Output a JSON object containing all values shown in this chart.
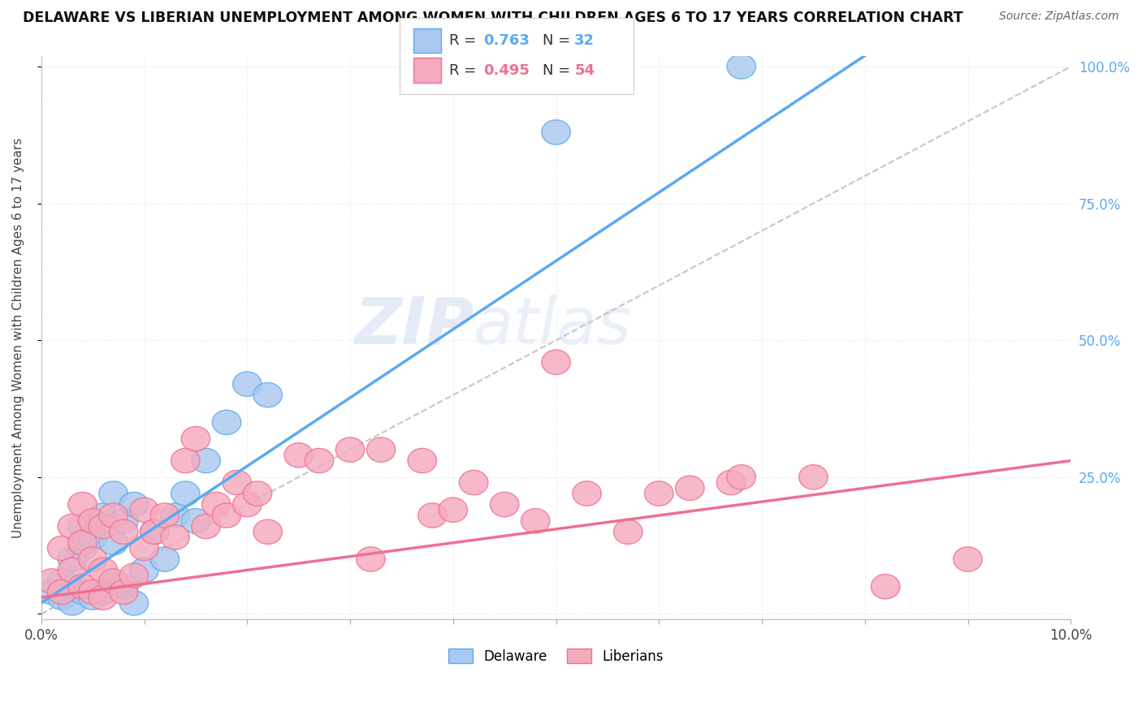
{
  "title": "DELAWARE VS LIBERIAN UNEMPLOYMENT AMONG WOMEN WITH CHILDREN AGES 6 TO 17 YEARS CORRELATION CHART",
  "source": "Source: ZipAtlas.com",
  "ylabel": "Unemployment Among Women with Children Ages 6 to 17 years",
  "xlim": [
    0.0,
    0.1
  ],
  "ylim": [
    -0.01,
    1.02
  ],
  "delaware_R": 0.763,
  "delaware_N": 32,
  "liberian_R": 0.495,
  "liberian_N": 54,
  "delaware_color": "#aac8f0",
  "liberian_color": "#f5aabe",
  "delaware_line_color": "#5aaaee",
  "liberian_line_color": "#ee7090",
  "diagonal_color": "#c0c0c0",
  "background_color": "#ffffff",
  "grid_color": "#dde4ee",
  "del_line_slope": 12.5,
  "del_line_intercept": 0.02,
  "lib_line_slope": 2.5,
  "lib_line_intercept": 0.03,
  "delaware_x": [
    0.001,
    0.002,
    0.002,
    0.003,
    0.003,
    0.003,
    0.004,
    0.004,
    0.004,
    0.005,
    0.005,
    0.006,
    0.006,
    0.007,
    0.007,
    0.007,
    0.008,
    0.008,
    0.009,
    0.009,
    0.01,
    0.011,
    0.012,
    0.013,
    0.014,
    0.015,
    0.016,
    0.018,
    0.02,
    0.022,
    0.05,
    0.068
  ],
  "delaware_y": [
    0.04,
    0.03,
    0.06,
    0.02,
    0.05,
    0.1,
    0.04,
    0.12,
    0.16,
    0.03,
    0.14,
    0.04,
    0.18,
    0.05,
    0.13,
    0.22,
    0.05,
    0.17,
    0.02,
    0.2,
    0.08,
    0.15,
    0.1,
    0.18,
    0.22,
    0.17,
    0.28,
    0.35,
    0.42,
    0.4,
    0.88,
    1.0
  ],
  "liberian_x": [
    0.001,
    0.002,
    0.002,
    0.003,
    0.003,
    0.004,
    0.004,
    0.004,
    0.005,
    0.005,
    0.005,
    0.006,
    0.006,
    0.006,
    0.007,
    0.007,
    0.008,
    0.008,
    0.009,
    0.01,
    0.01,
    0.011,
    0.012,
    0.013,
    0.014,
    0.015,
    0.016,
    0.017,
    0.018,
    0.019,
    0.02,
    0.021,
    0.022,
    0.025,
    0.027,
    0.03,
    0.032,
    0.033,
    0.037,
    0.038,
    0.04,
    0.042,
    0.045,
    0.048,
    0.05,
    0.053,
    0.057,
    0.06,
    0.063,
    0.067,
    0.068,
    0.075,
    0.082,
    0.09
  ],
  "liberian_y": [
    0.06,
    0.04,
    0.12,
    0.08,
    0.16,
    0.05,
    0.13,
    0.2,
    0.04,
    0.1,
    0.17,
    0.03,
    0.08,
    0.16,
    0.06,
    0.18,
    0.04,
    0.15,
    0.07,
    0.19,
    0.12,
    0.15,
    0.18,
    0.14,
    0.28,
    0.32,
    0.16,
    0.2,
    0.18,
    0.24,
    0.2,
    0.22,
    0.15,
    0.29,
    0.28,
    0.3,
    0.1,
    0.3,
    0.28,
    0.18,
    0.19,
    0.24,
    0.2,
    0.17,
    0.46,
    0.22,
    0.15,
    0.22,
    0.23,
    0.24,
    0.25,
    0.25,
    0.05,
    0.1
  ]
}
